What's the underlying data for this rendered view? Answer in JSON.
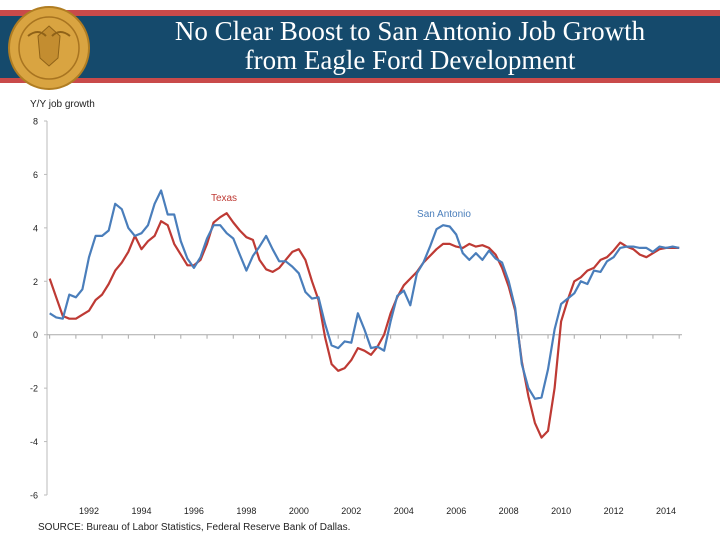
{
  "header": {
    "title_line1": "No Clear Boost to San Antonio Job Growth",
    "title_line2": "from Eagle Ford Development",
    "logo_text": "Federal Reserve Bank of Dallas",
    "colors": {
      "band": "#154a6c",
      "stripe": "#c94a4a",
      "seal": "#d9a441"
    }
  },
  "chart_data": {
    "type": "line",
    "title": "",
    "ylabel": "Y/Y job growth",
    "xlabel": "",
    "ylim": [
      -6,
      8
    ],
    "yticks": [
      8,
      6,
      4,
      2,
      0,
      -2,
      -4,
      -6
    ],
    "xlim": [
      1990.4,
      2014.6
    ],
    "xticks": [
      "1992",
      "1994",
      "1996",
      "1998",
      "2000",
      "2002",
      "2004",
      "2006",
      "2008",
      "2010",
      "2012",
      "2014"
    ],
    "grid": false,
    "x": [
      1990.5,
      1990.75,
      1991,
      1991.25,
      1991.5,
      1991.75,
      1992,
      1992.25,
      1992.5,
      1992.75,
      1993,
      1993.25,
      1993.5,
      1993.75,
      1994,
      1994.25,
      1994.5,
      1994.75,
      1995,
      1995.25,
      1995.5,
      1995.75,
      1996,
      1996.25,
      1996.5,
      1996.75,
      1997,
      1997.25,
      1997.5,
      1997.75,
      1998,
      1998.25,
      1998.5,
      1998.75,
      1999,
      1999.25,
      1999.5,
      1999.75,
      2000,
      2000.25,
      2000.5,
      2000.75,
      2001,
      2001.25,
      2001.5,
      2001.75,
      2002,
      2002.25,
      2002.5,
      2002.75,
      2003,
      2003.25,
      2003.5,
      2003.75,
      2004,
      2004.25,
      2004.5,
      2004.75,
      2005,
      2005.25,
      2005.5,
      2005.75,
      2006,
      2006.25,
      2006.5,
      2006.75,
      2007,
      2007.25,
      2007.5,
      2007.75,
      2008,
      2008.25,
      2008.5,
      2008.75,
      2009,
      2009.25,
      2009.5,
      2009.75,
      2010,
      2010.25,
      2010.5,
      2010.75,
      2011,
      2011.25,
      2011.5,
      2011.75,
      2012,
      2012.25,
      2012.5,
      2012.75,
      2013,
      2013.25,
      2013.5,
      2013.75,
      2014,
      2014.25,
      2014.5
    ],
    "series": [
      {
        "name": "Texas",
        "color": "#be3a34",
        "values": [
          2.1,
          1.4,
          0.7,
          0.6,
          0.6,
          0.75,
          0.9,
          1.3,
          1.5,
          1.9,
          2.4,
          2.7,
          3.1,
          3.7,
          3.2,
          3.5,
          3.7,
          4.25,
          4.1,
          3.4,
          3.0,
          2.6,
          2.6,
          2.8,
          3.4,
          4.2,
          4.4,
          4.55,
          4.2,
          3.9,
          3.65,
          3.55,
          2.8,
          2.45,
          2.35,
          2.5,
          2.8,
          3.1,
          3.2,
          2.8,
          2.0,
          1.3,
          -0.1,
          -1.1,
          -1.35,
          -1.25,
          -0.95,
          -0.5,
          -0.6,
          -0.75,
          -0.45,
          0.0,
          0.8,
          1.4,
          1.85,
          2.1,
          2.35,
          2.7,
          2.95,
          3.2,
          3.4,
          3.4,
          3.3,
          3.25,
          3.4,
          3.3,
          3.35,
          3.25,
          3.0,
          2.5,
          1.8,
          0.9,
          -1.0,
          -2.3,
          -3.3,
          -3.85,
          -3.6,
          -2.0,
          0.5,
          1.3,
          2.0,
          2.15,
          2.4,
          2.5,
          2.8,
          2.9,
          3.15,
          3.45,
          3.3,
          3.2,
          3.0,
          2.9,
          3.05,
          3.2,
          3.25,
          3.25,
          3.25
        ]
      },
      {
        "name": "San Antonio",
        "color": "#4a7ebb",
        "values": [
          0.8,
          0.65,
          0.6,
          1.5,
          1.4,
          1.7,
          2.9,
          3.7,
          3.7,
          3.9,
          4.9,
          4.7,
          4.0,
          3.7,
          3.8,
          4.1,
          4.9,
          5.4,
          4.5,
          4.5,
          3.5,
          2.85,
          2.5,
          2.9,
          3.6,
          4.1,
          4.1,
          3.8,
          3.6,
          3.0,
          2.4,
          2.95,
          3.3,
          3.7,
          3.2,
          2.75,
          2.75,
          2.55,
          2.3,
          1.6,
          1.35,
          1.4,
          0.4,
          -0.4,
          -0.5,
          -0.25,
          -0.3,
          0.8,
          0.2,
          -0.5,
          -0.45,
          -0.6,
          0.5,
          1.45,
          1.65,
          1.1,
          2.3,
          2.7,
          3.3,
          3.95,
          4.1,
          4.05,
          3.75,
          3.05,
          2.8,
          3.05,
          2.8,
          3.15,
          2.85,
          2.7,
          2.0,
          1.0,
          -1.1,
          -2.0,
          -2.4,
          -2.35,
          -1.3,
          0.2,
          1.15,
          1.35,
          1.55,
          2.0,
          1.9,
          2.4,
          2.35,
          2.75,
          2.9,
          3.25,
          3.3,
          3.3,
          3.25,
          3.25,
          3.1,
          3.3,
          3.25,
          3.3,
          3.25
        ]
      }
    ],
    "annotations": [
      "Texas",
      "San Antonio"
    ]
  },
  "source": "SOURCE: Bureau of Labor Statistics, Federal Reserve Bank of Dallas."
}
